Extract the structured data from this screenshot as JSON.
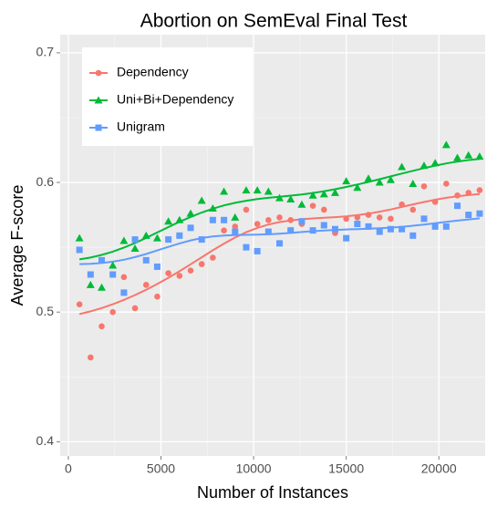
{
  "chart_data": {
    "type": "scatter",
    "title": "Abortion on SemEval Final Test",
    "x_label": "Number of Instances",
    "y_label": "Average F-score",
    "x": [
      600,
      1200,
      1800,
      2400,
      3000,
      3600,
      4200,
      4800,
      5400,
      6000,
      6600,
      7200,
      7800,
      8400,
      9000,
      9600,
      10200,
      10800,
      11400,
      12000,
      12600,
      13200,
      13800,
      14400,
      15000,
      15600,
      16200,
      16800,
      17400,
      18000,
      18600,
      19200,
      19800,
      20400,
      21000,
      21600,
      22200
    ],
    "series": [
      {
        "name": "Dependency",
        "color": "#F8766D",
        "marker": "circle",
        "values": [
          0.506,
          0.465,
          0.489,
          0.5,
          0.527,
          0.503,
          0.521,
          0.512,
          0.53,
          0.528,
          0.532,
          0.537,
          0.542,
          0.563,
          0.566,
          0.579,
          0.568,
          0.571,
          0.573,
          0.571,
          0.568,
          0.582,
          0.579,
          0.561,
          0.572,
          0.573,
          0.575,
          0.573,
          0.572,
          0.583,
          0.579,
          0.597,
          0.585,
          0.599,
          0.59,
          0.592,
          0.594
        ]
      },
      {
        "name": "Uni+Bi+Dependency",
        "color": "#00BA38",
        "marker": "triangle",
        "values": [
          0.557,
          0.521,
          0.519,
          0.536,
          0.555,
          0.549,
          0.559,
          0.557,
          0.57,
          0.571,
          0.576,
          0.586,
          0.58,
          0.593,
          0.573,
          0.594,
          0.594,
          0.593,
          0.588,
          0.587,
          0.583,
          0.59,
          0.591,
          0.592,
          0.601,
          0.596,
          0.603,
          0.6,
          0.602,
          0.612,
          0.599,
          0.613,
          0.615,
          0.629,
          0.619,
          0.621,
          0.62
        ]
      },
      {
        "name": "Unigram",
        "color": "#619CFF",
        "marker": "square",
        "values": [
          0.548,
          0.529,
          0.54,
          0.529,
          0.515,
          0.556,
          0.54,
          0.535,
          0.556,
          0.559,
          0.565,
          0.556,
          0.571,
          0.571,
          0.562,
          0.55,
          0.547,
          0.562,
          0.553,
          0.563,
          0.57,
          0.563,
          0.567,
          0.564,
          0.557,
          0.568,
          0.566,
          0.562,
          0.564,
          0.564,
          0.559,
          0.572,
          0.566,
          0.566,
          0.582,
          0.575,
          0.576
        ]
      }
    ],
    "xlim": [
      -440,
      22500
    ],
    "ylim": [
      0.389,
      0.714
    ],
    "xticks": [
      0,
      5000,
      10000,
      15000,
      20000
    ],
    "yticks": [
      0.4,
      0.5,
      0.6,
      0.7
    ],
    "grid": true,
    "smooth": true,
    "legend": "top-left"
  }
}
